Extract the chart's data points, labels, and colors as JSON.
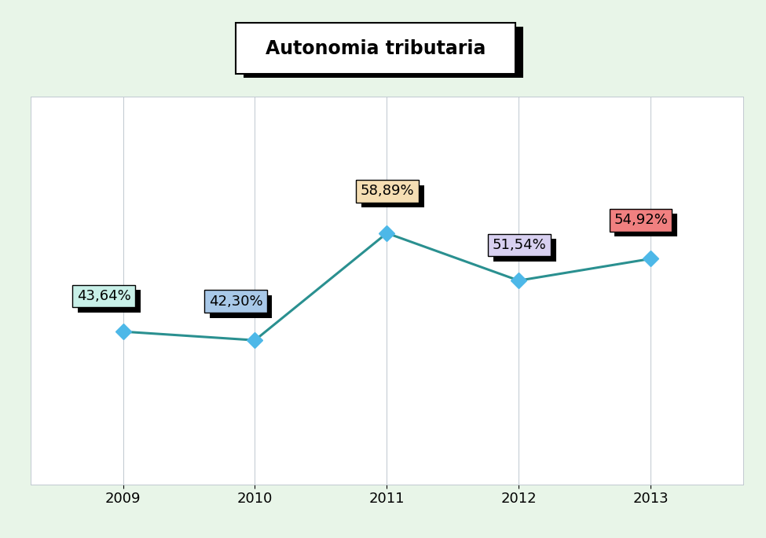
{
  "title": "Autonomia tributaria",
  "years": [
    2009,
    2010,
    2011,
    2012,
    2013
  ],
  "values": [
    43.64,
    42.3,
    58.89,
    51.54,
    54.92
  ],
  "labels": [
    "43,64%",
    "42,30%",
    "58,89%",
    "51,54%",
    "54,92%"
  ],
  "bg_outer": "#e8f5e8",
  "bg_plot": "#ffffff",
  "line_color": "#2a9090",
  "marker_color": "#4db8e8",
  "marker_size": 10,
  "line_width": 2.2,
  "title_fontsize": 17,
  "label_fontsize": 13,
  "tick_fontsize": 13,
  "ylim": [
    20,
    80
  ],
  "label_box_colors": [
    "#c8f0e8",
    "#a8c8e8",
    "#f5deb3",
    "#d8d0f0",
    "#f08080"
  ],
  "label_x_offsets": [
    -0.35,
    -0.35,
    -0.2,
    -0.2,
    -0.28
  ],
  "label_y_offsets": [
    5.5,
    6.0,
    6.5,
    5.5,
    6.0
  ]
}
